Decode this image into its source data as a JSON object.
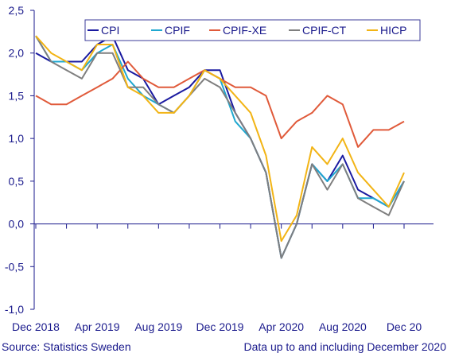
{
  "chart_data": {
    "type": "line",
    "x": [
      "2018-12",
      "2019-01",
      "2019-02",
      "2019-03",
      "2019-04",
      "2019-05",
      "2019-06",
      "2019-07",
      "2019-08",
      "2019-09",
      "2019-10",
      "2019-11",
      "2019-12",
      "2020-01",
      "2020-02",
      "2020-03",
      "2020-04",
      "2020-05",
      "2020-06",
      "2020-07",
      "2020-08",
      "2020-09",
      "2020-10",
      "2020-11",
      "2020-12"
    ],
    "x_tick_labels": [
      "Dec 2018",
      "Apr 2019",
      "Aug 2019",
      "Dec 2019",
      "Apr 2020",
      "Aug 2020",
      "Dec 20"
    ],
    "y_tick_labels": [
      "-1,0",
      "-0,5",
      "0,0",
      "0,5",
      "1,0",
      "1,5",
      "2,0",
      "2,5"
    ],
    "ylim": [
      -1.0,
      2.5
    ],
    "grid": false,
    "legend_position": "top-right",
    "series": [
      {
        "name": "CPI",
        "color": "#1a1aa0",
        "values": [
          2.0,
          1.9,
          1.9,
          1.9,
          2.1,
          2.2,
          1.8,
          1.7,
          1.4,
          1.5,
          1.6,
          1.8,
          1.8,
          1.3,
          1.0,
          0.6,
          -0.4,
          0.0,
          0.7,
          0.5,
          0.8,
          0.4,
          0.3,
          0.2,
          0.5
        ]
      },
      {
        "name": "CPIF",
        "color": "#1fa8d0",
        "values": [
          2.2,
          1.9,
          1.9,
          1.8,
          2.0,
          2.1,
          1.7,
          1.5,
          1.4,
          1.3,
          1.5,
          1.8,
          1.7,
          1.2,
          1.0,
          0.6,
          -0.4,
          0.0,
          0.7,
          0.5,
          0.7,
          0.3,
          0.3,
          0.2,
          0.5
        ]
      },
      {
        "name": "CPIF-XE",
        "color": "#e05a3a",
        "values": [
          1.5,
          1.4,
          1.4,
          1.5,
          1.6,
          1.7,
          1.9,
          1.7,
          1.6,
          1.6,
          1.7,
          1.8,
          1.7,
          1.6,
          1.6,
          1.5,
          1.0,
          1.2,
          1.3,
          1.5,
          1.4,
          0.9,
          1.1,
          1.1,
          1.2
        ]
      },
      {
        "name": "CPIF-CT",
        "color": "#7f7f7f",
        "values": [
          2.2,
          1.9,
          1.8,
          1.7,
          2.0,
          2.0,
          1.6,
          1.6,
          1.4,
          1.3,
          1.5,
          1.7,
          1.6,
          1.3,
          1.0,
          0.6,
          -0.4,
          0.0,
          0.7,
          0.4,
          0.7,
          0.3,
          0.2,
          0.1,
          0.5
        ]
      },
      {
        "name": "HICP",
        "color": "#f2b415",
        "values": [
          2.2,
          2.0,
          1.9,
          1.8,
          2.1,
          2.1,
          1.6,
          1.5,
          1.3,
          1.3,
          1.5,
          1.8,
          1.7,
          1.5,
          1.3,
          0.8,
          -0.2,
          0.1,
          0.9,
          0.7,
          1.0,
          0.6,
          0.4,
          0.2,
          0.6
        ]
      }
    ]
  },
  "footer": {
    "source": "Source:  Statistics Sweden",
    "note": "Data up to and including December 2020"
  }
}
